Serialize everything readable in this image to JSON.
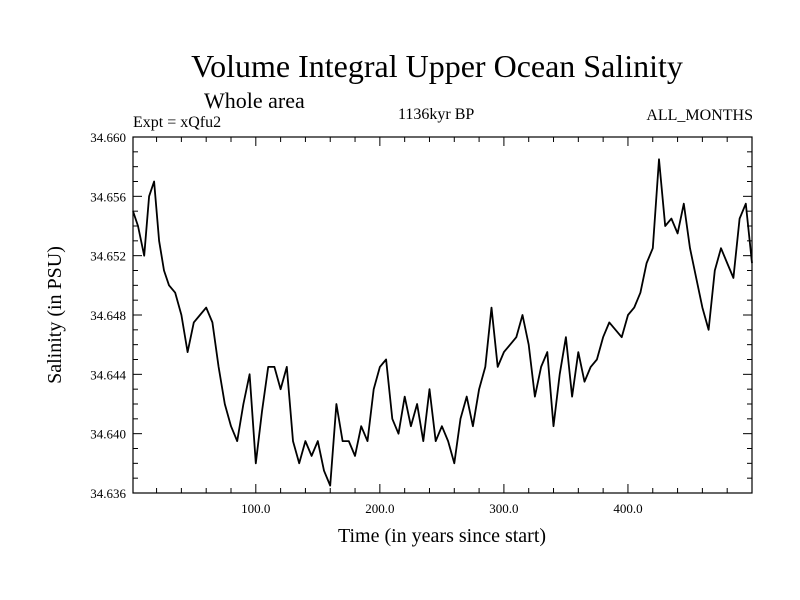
{
  "header": {
    "title": "Volume Integral Upper Ocean Salinity",
    "subtitle": "Whole area",
    "experiment": "Expt = xQfu2",
    "period": "1136kyr BP",
    "months": "ALL_MONTHS"
  },
  "chart_data": {
    "type": "line",
    "title": "Volume Integral Upper Ocean Salinity",
    "subtitle": "Whole area",
    "xlabel": "Time (in years since start)",
    "ylabel": "Salinity (in PSU)",
    "xlim": [
      1,
      500
    ],
    "ylim": [
      34.636,
      34.66
    ],
    "xticks": [
      100,
      200,
      300,
      400
    ],
    "xtick_labels": [
      "100.0",
      "200.0",
      "300.0",
      "400.0"
    ],
    "yticks": [
      34.636,
      34.64,
      34.644,
      34.648,
      34.652,
      34.656,
      34.66
    ],
    "ytick_labels": [
      "34.636",
      "34.640",
      "34.644",
      "34.648",
      "34.652",
      "34.656",
      "34.660"
    ],
    "grid": false,
    "series": [
      {
        "name": "Salinity",
        "color": "#000000",
        "x": [
          1,
          5,
          10,
          14,
          18,
          22,
          26,
          30,
          35,
          40,
          45,
          50,
          55,
          60,
          65,
          70,
          75,
          80,
          85,
          90,
          95,
          100,
          105,
          110,
          115,
          120,
          125,
          130,
          135,
          140,
          145,
          150,
          155,
          160,
          165,
          170,
          175,
          180,
          185,
          190,
          195,
          200,
          205,
          210,
          215,
          220,
          225,
          230,
          235,
          240,
          245,
          250,
          255,
          260,
          265,
          270,
          275,
          280,
          285,
          290,
          295,
          300,
          305,
          310,
          315,
          320,
          325,
          330,
          335,
          340,
          345,
          350,
          355,
          360,
          365,
          370,
          375,
          380,
          385,
          390,
          395,
          400,
          405,
          410,
          415,
          420,
          425,
          430,
          435,
          440,
          445,
          450,
          455,
          460,
          465,
          470,
          475,
          480,
          485,
          490,
          495,
          500
        ],
        "values": [
          34.655,
          34.654,
          34.652,
          34.656,
          34.657,
          34.653,
          34.651,
          34.65,
          34.6495,
          34.648,
          34.6455,
          34.6475,
          34.648,
          34.6485,
          34.6475,
          34.6445,
          34.642,
          34.6405,
          34.6395,
          34.642,
          34.644,
          34.638,
          34.6415,
          34.6445,
          34.6445,
          34.643,
          34.6445,
          34.6395,
          34.638,
          34.6395,
          34.6385,
          34.6395,
          34.6375,
          34.6365,
          34.642,
          34.6395,
          34.6395,
          34.6385,
          34.6405,
          34.6395,
          34.643,
          34.6445,
          34.645,
          34.641,
          34.64,
          34.6425,
          34.6405,
          34.642,
          34.6395,
          34.643,
          34.6395,
          34.6405,
          34.6395,
          34.638,
          34.641,
          34.6425,
          34.6405,
          34.643,
          34.6445,
          34.6485,
          34.6445,
          34.6455,
          34.646,
          34.6465,
          34.648,
          34.646,
          34.6425,
          34.6445,
          34.6455,
          34.6405,
          34.644,
          34.6465,
          34.6425,
          34.6455,
          34.6435,
          34.6445,
          34.645,
          34.6465,
          34.6475,
          34.647,
          34.6465,
          34.648,
          34.6485,
          34.6495,
          34.6515,
          34.6525,
          34.6585,
          34.654,
          34.6545,
          34.6535,
          34.6555,
          34.6525,
          34.6505,
          34.6485,
          34.647,
          34.651,
          34.6525,
          34.6515,
          34.6505,
          34.6545,
          34.6555,
          34.6515
        ]
      }
    ]
  }
}
